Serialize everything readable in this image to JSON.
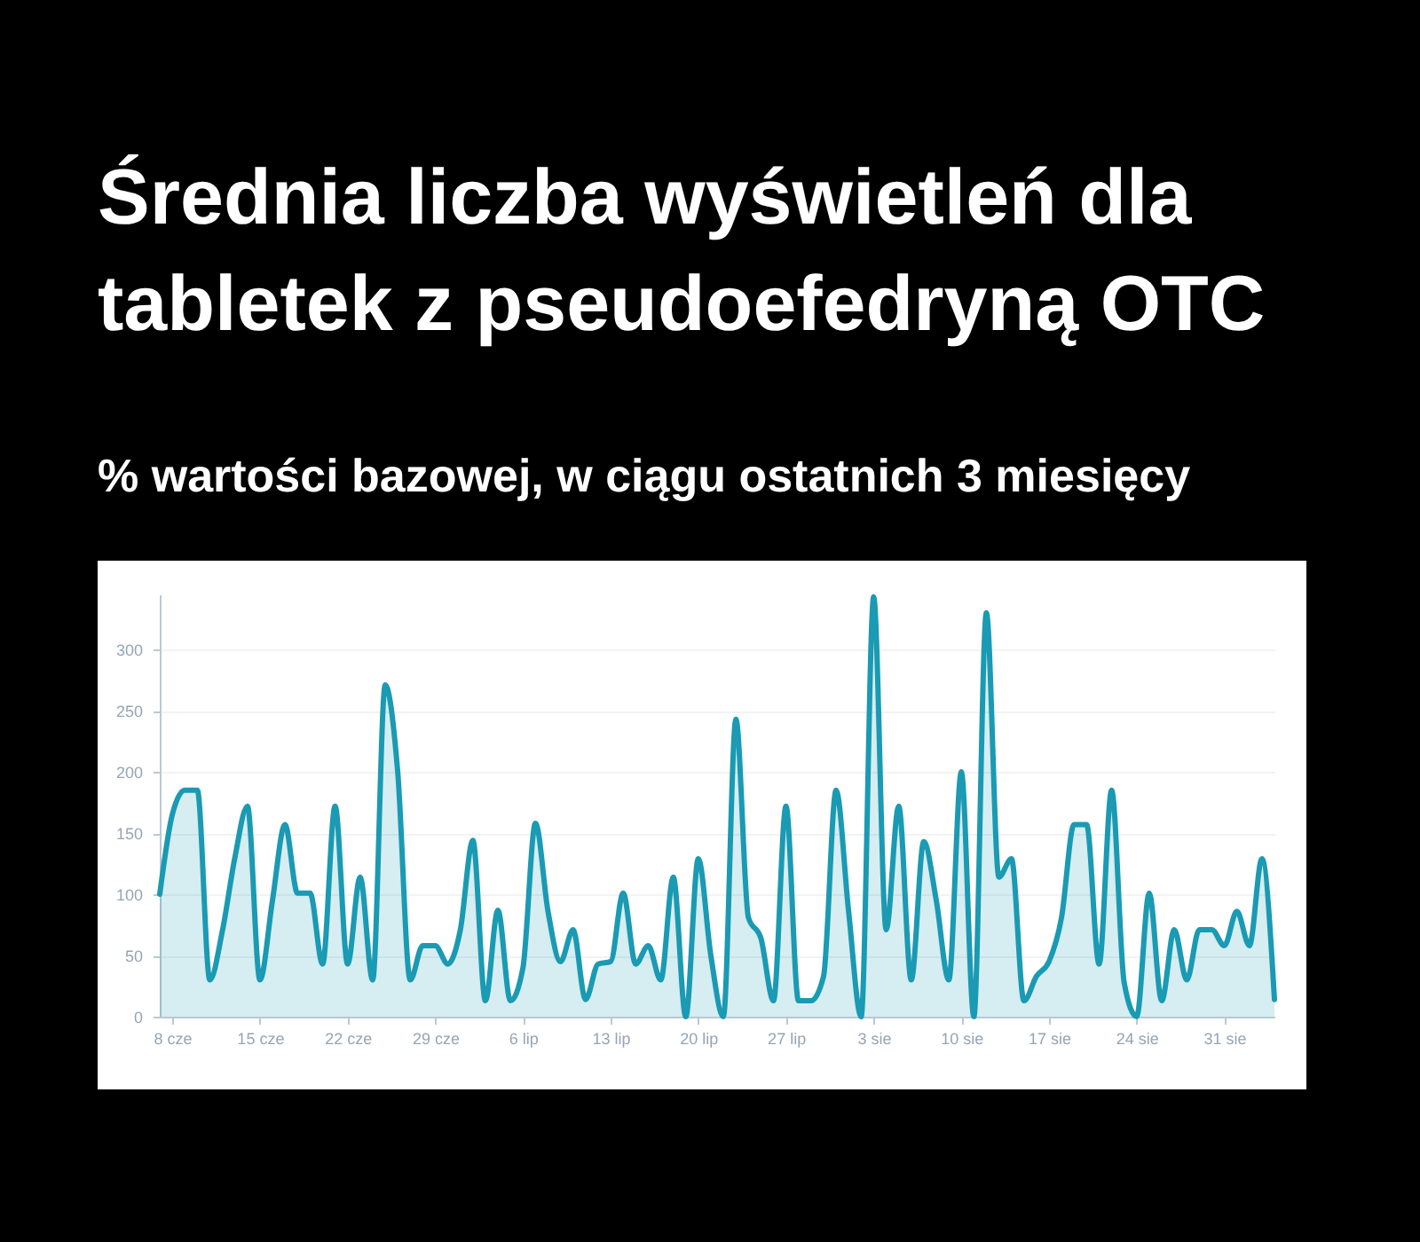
{
  "chart_data": {
    "type": "area",
    "title": "Średnia liczba wyświetleń dla tabletek z pseudoefedryną OTC",
    "subtitle": "% wartości bazowej, w ciągu ostatnich 3 miesięcy",
    "x": [
      "--06-07",
      "--06-08",
      "--06-09",
      "--06-10",
      "--06-11",
      "--06-12",
      "--06-13",
      "--06-14",
      "--06-15",
      "--06-16",
      "--06-17",
      "--06-18",
      "--06-19",
      "--06-20",
      "--06-21",
      "--06-22",
      "--06-23",
      "--06-24",
      "--06-25",
      "--06-26",
      "--06-27",
      "--06-28",
      "--06-29",
      "--06-30",
      "--07-01",
      "--07-02",
      "--07-03",
      "--07-04",
      "--07-05",
      "--07-06",
      "--07-07",
      "--07-08",
      "--07-09",
      "--07-10",
      "--07-11",
      "--07-12",
      "--07-13",
      "--07-14",
      "--07-15",
      "--07-16",
      "--07-17",
      "--07-18",
      "--07-19",
      "--07-20",
      "--07-21",
      "--07-22",
      "--07-23",
      "--07-24",
      "--07-25",
      "--07-26",
      "--07-27",
      "--07-28",
      "--07-29",
      "--07-30",
      "--07-31",
      "--08-01",
      "--08-02",
      "--08-03",
      "--08-04",
      "--08-05",
      "--08-06",
      "--08-07",
      "--08-08",
      "--08-09",
      "--08-10",
      "--08-11",
      "--08-12",
      "--08-13",
      "--08-14",
      "--08-15",
      "--08-16",
      "--08-17",
      "--08-18",
      "--08-19",
      "--08-20",
      "--08-21",
      "--08-22",
      "--08-23",
      "--08-24",
      "--08-25",
      "--08-26",
      "--08-27",
      "--08-28",
      "--08-29",
      "--08-30",
      "--08-31",
      "--09-01",
      "--09-02",
      "--09-03",
      "--09-04"
    ],
    "values": [
      100,
      165,
      185,
      185,
      30,
      70,
      130,
      172,
      30,
      95,
      157,
      101,
      101,
      43,
      172,
      43,
      114,
      30,
      271,
      200,
      30,
      58,
      58,
      43,
      71,
      144,
      13,
      87,
      13,
      40,
      158,
      86,
      45,
      71,
      14,
      43,
      45,
      101,
      43,
      58,
      30,
      114,
      0,
      129,
      50,
      0,
      243,
      81,
      64,
      13,
      172,
      13,
      13,
      33,
      185,
      86,
      0,
      343,
      71,
      172,
      30,
      143,
      95,
      30,
      200,
      0,
      330,
      114,
      129,
      13,
      33,
      45,
      81,
      157,
      157,
      43,
      185,
      28,
      0,
      101,
      13,
      71,
      30,
      71,
      71,
      58,
      86,
      58,
      129,
      14
    ],
    "color": "#1a9ab3",
    "xlim": [
      "--06-07",
      "--09-04"
    ],
    "xticks": [
      {
        "value": "--06-08",
        "label": "8 cze"
      },
      {
        "value": "--06-15",
        "label": "15 cze"
      },
      {
        "value": "--06-22",
        "label": "22 cze"
      },
      {
        "value": "--06-29",
        "label": "29 cze"
      },
      {
        "value": "--07-06",
        "label": "6 lip"
      },
      {
        "value": "--07-13",
        "label": "13 lip"
      },
      {
        "value": "--07-20",
        "label": "20 lip"
      },
      {
        "value": "--07-27",
        "label": "27 lip"
      },
      {
        "value": "--08-03",
        "label": "3 sie"
      },
      {
        "value": "--08-10",
        "label": "10 sie"
      },
      {
        "value": "--08-17",
        "label": "17 sie"
      },
      {
        "value": "--08-24",
        "label": "24 sie"
      },
      {
        "value": "--08-31",
        "label": "31 sie"
      }
    ],
    "ylim": [
      0,
      345
    ],
    "yticks": [
      0,
      50,
      100,
      150,
      200,
      250,
      300
    ],
    "grid": "y"
  }
}
